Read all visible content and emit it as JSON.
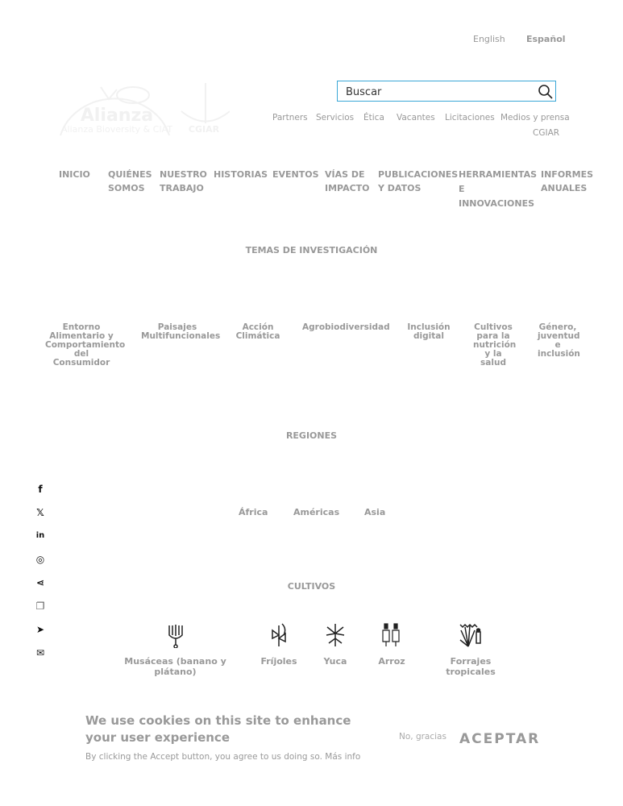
{
  "languages": [
    {
      "label": "English",
      "active": false
    },
    {
      "label": "Español",
      "active": true
    }
  ],
  "logo": {
    "alliance": "Alianza Bioversity & CIAT",
    "cgiar": "CGIAR"
  },
  "search": {
    "value": "Buscar"
  },
  "utility_links": [
    "Partners",
    "Servicios",
    "Ética",
    "Vacantes",
    "Licitaciones",
    "Medios y prensa",
    "CGIAR"
  ],
  "nav": [
    "INICIO",
    "QUIÉNES SOMOS",
    "NUESTRO TRABAJO",
    "HISTORIAS",
    "EVENTOS",
    "VÍAS DE IMPACTO",
    "PUBLICACIONES Y DATOS",
    "HERRAMIENTAS E INNOVACIONES",
    "INFORMES ANUALES"
  ],
  "temas": {
    "title": "TEMAS DE INVESTIGACIÓN",
    "items": [
      "Entorno Alimentario y Comportamiento del Consumidor",
      "Paisajes Multifuncionales",
      "Acción Climática",
      "Agrobiodiversidad",
      "Inclusión digital",
      "Cultivos para la nutrición y la salud",
      "Género, juventud e inclusión"
    ]
  },
  "regiones": {
    "title": "REGIONES",
    "items": [
      "África",
      "Américas",
      "Asia"
    ]
  },
  "cultivos": {
    "title": "CULTIVOS",
    "items": [
      "Musáceas (banano y plátano)",
      "Fríjoles",
      "Yuca",
      "Arroz",
      "Forrajes tropicales"
    ]
  },
  "social": [
    {
      "icon": "facebook-icon",
      "glyph": "f"
    },
    {
      "icon": "x-icon",
      "glyph": "𝕏"
    },
    {
      "icon": "linkedin-icon",
      "glyph": "in"
    },
    {
      "icon": "whatsapp-icon",
      "glyph": "◎"
    },
    {
      "icon": "share-icon",
      "glyph": "⋖"
    },
    {
      "icon": "copy-icon",
      "glyph": "❐"
    },
    {
      "icon": "telegram-icon",
      "glyph": "➤"
    },
    {
      "icon": "email-icon",
      "glyph": "✉"
    }
  ],
  "cookie": {
    "title": "We use cookies on this site to enhance your user experience",
    "text": "By clicking the Accept button, you agree to us doing so.",
    "more": "Más info",
    "decline": "No, gracias",
    "accept": "ACEPTAR"
  },
  "colors": {
    "search_border": "#3aa7d6",
    "text_gray": "#999999"
  }
}
